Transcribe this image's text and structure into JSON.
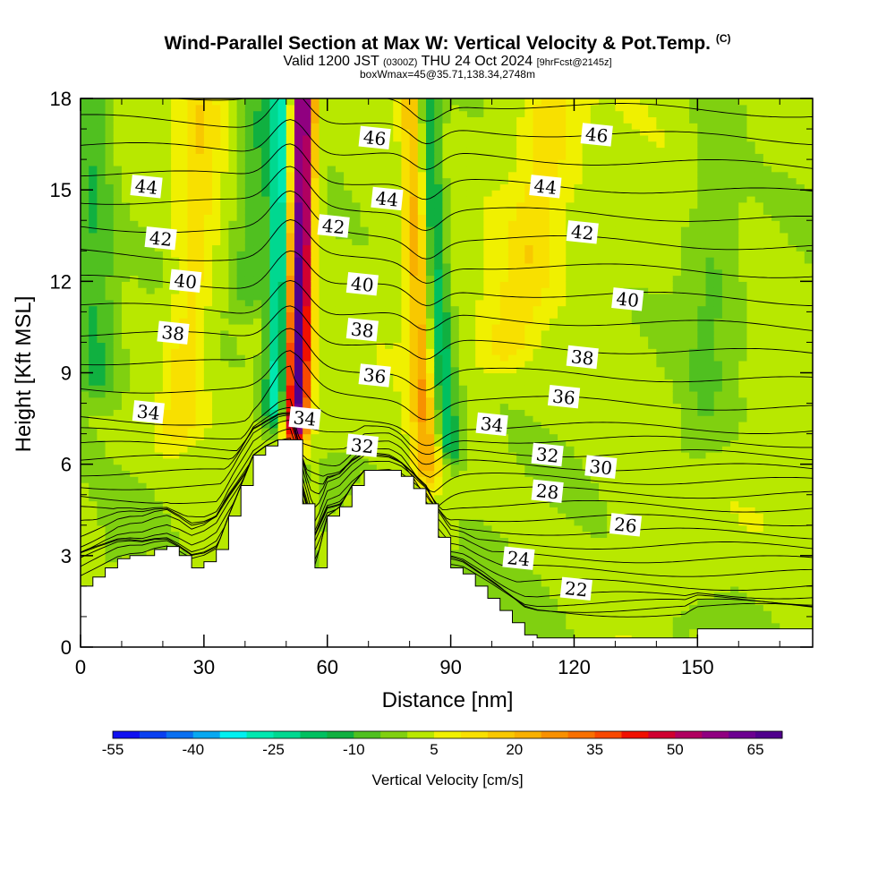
{
  "header": {
    "title": "Wind-Parallel Section at Max W: Vertical Velocity & Pot.Temp.",
    "copyright": "(C)",
    "valid_prefix": "Valid 1200 JST",
    "valid_utc": "(0300Z)",
    "valid_date": "THU 24 Oct 2024",
    "forecast": "[9hrFcst@2145z]",
    "box_info": "boxWmax=45@35.71,138.34,2748m"
  },
  "chart_data": {
    "type": "heatmap",
    "xlabel": "Distance [nm]",
    "ylabel": "Height [Kft MSL]",
    "xlim": [
      0,
      178
    ],
    "ylim": [
      0,
      18
    ],
    "x_ticks": [
      0,
      30,
      60,
      90,
      120,
      150
    ],
    "y_ticks": [
      0,
      3,
      6,
      9,
      12,
      15,
      18
    ],
    "colorbar": {
      "label": "Vertical Velocity [cm/s]",
      "tick_labels": [
        "-55",
        "-40",
        "-25",
        "-10",
        "5",
        "20",
        "35",
        "50",
        "65"
      ],
      "range": [
        -55,
        70
      ],
      "step": 5,
      "colors": [
        "#1010f0",
        "#0a40f0",
        "#0a70f0",
        "#08a8f0",
        "#00f0f0",
        "#00e8b0",
        "#00d890",
        "#00c060",
        "#10b040",
        "#50c020",
        "#80d010",
        "#b8e800",
        "#f0f000",
        "#f8e000",
        "#f8c800",
        "#f8b000",
        "#f89000",
        "#f87000",
        "#f84800",
        "#f01000",
        "#d00030",
        "#b00060",
        "#900080",
        "#6c0090",
        "#50008c"
      ]
    },
    "theta_contours": [
      {
        "label": "22",
        "x": 120.5,
        "y": 1.9
      },
      {
        "label": "24",
        "x": 106.5,
        "y": 2.9
      },
      {
        "label": "26",
        "x": 132.5,
        "y": 4.0
      },
      {
        "label": "28",
        "x": 113.5,
        "y": 5.1
      },
      {
        "label": "30",
        "x": 126.5,
        "y": 5.9
      },
      {
        "label": "32",
        "x": 68.5,
        "y": 6.6
      },
      {
        "label": "32",
        "x": 113.5,
        "y": 6.3
      },
      {
        "label": "34",
        "x": 16.5,
        "y": 7.7
      },
      {
        "label": "34",
        "x": 54.5,
        "y": 7.5
      },
      {
        "label": "34",
        "x": 100.0,
        "y": 7.3
      },
      {
        "label": "36",
        "x": 71.5,
        "y": 8.9
      },
      {
        "label": "36",
        "x": 117.5,
        "y": 8.2
      },
      {
        "label": "38",
        "x": 22.5,
        "y": 10.3
      },
      {
        "label": "38",
        "x": 68.5,
        "y": 10.4
      },
      {
        "label": "38",
        "x": 122.0,
        "y": 9.5
      },
      {
        "label": "40",
        "x": 25.5,
        "y": 12.0
      },
      {
        "label": "40",
        "x": 68.5,
        "y": 11.9
      },
      {
        "label": "40",
        "x": 133.0,
        "y": 11.4
      },
      {
        "label": "42",
        "x": 19.5,
        "y": 13.4
      },
      {
        "label": "42",
        "x": 61.5,
        "y": 13.8
      },
      {
        "label": "42",
        "x": 122.0,
        "y": 13.6
      },
      {
        "label": "44",
        "x": 16.0,
        "y": 15.1
      },
      {
        "label": "44",
        "x": 74.5,
        "y": 14.7
      },
      {
        "label": "44",
        "x": 113.0,
        "y": 15.1
      },
      {
        "label": "46",
        "x": 71.5,
        "y": 16.7
      },
      {
        "label": "46",
        "x": 125.5,
        "y": 16.8
      }
    ],
    "terrain_profile": {
      "x": [
        0,
        3,
        6,
        9,
        12,
        15,
        18,
        21,
        24,
        27,
        30,
        33,
        36,
        39,
        42,
        45,
        48,
        51,
        54,
        57,
        60,
        63,
        66,
        69,
        72,
        75,
        78,
        81,
        84,
        87,
        90,
        93,
        96,
        99,
        102,
        105,
        108,
        111,
        114,
        117,
        120,
        123,
        126,
        129,
        132,
        135,
        138,
        141,
        144,
        147,
        150,
        153,
        156,
        159,
        162,
        165,
        168,
        171,
        174,
        178
      ],
      "height": [
        2.0,
        2.3,
        2.6,
        2.9,
        3.0,
        3.0,
        3.2,
        3.3,
        3.0,
        2.6,
        2.8,
        3.2,
        4.3,
        5.3,
        6.3,
        6.6,
        6.8,
        6.8,
        4.7,
        2.6,
        4.3,
        4.6,
        5.3,
        5.8,
        5.8,
        5.8,
        5.6,
        5.2,
        4.7,
        3.6,
        2.6,
        2.4,
        2.0,
        1.6,
        1.2,
        0.8,
        0.4,
        0.3,
        0.3,
        0.3,
        0.3,
        0.3,
        0.3,
        0.3,
        0.3,
        0.3,
        0.3,
        0.3,
        0.3,
        0.3,
        0.6,
        0.6,
        0.6,
        0.6,
        0.6,
        0.6,
        0.6,
        0.6,
        0.6,
        0.6
      ]
    },
    "w_features": [
      {
        "x_bottom": 52,
        "x_top": 54,
        "y_start": 6.5,
        "amplitude": 65,
        "width": 2.8
      },
      {
        "x_bottom": 47,
        "x_top": 49,
        "y_start": 7.2,
        "amplitude": -30,
        "width": 2.6
      },
      {
        "x_bottom": 85,
        "x_top": 81,
        "y_start": 5.2,
        "amplitude": 22,
        "width": 3.2
      },
      {
        "x_bottom": 91,
        "x_top": 84,
        "y_start": 6.0,
        "amplitude": -22,
        "width": 3.0
      },
      {
        "x_bottom": 22,
        "x_top": 30,
        "y_start": 6.5,
        "amplitude": 12,
        "width": 5.0
      },
      {
        "x_bottom": 100,
        "x_top": 115,
        "y_start": 9.0,
        "amplitude": 10,
        "width": 7.0
      },
      {
        "x_bottom": 4,
        "x_top": 3,
        "y_start": 8.0,
        "amplitude": -12,
        "width": 5.0
      },
      {
        "x_bottom": 40,
        "x_top": 44,
        "y_start": 11.0,
        "amplitude": -10,
        "width": 4.0
      },
      {
        "x_bottom": 150,
        "x_top": 155,
        "y_start": 6.0,
        "amplitude": -6,
        "width": 6.0
      }
    ]
  }
}
